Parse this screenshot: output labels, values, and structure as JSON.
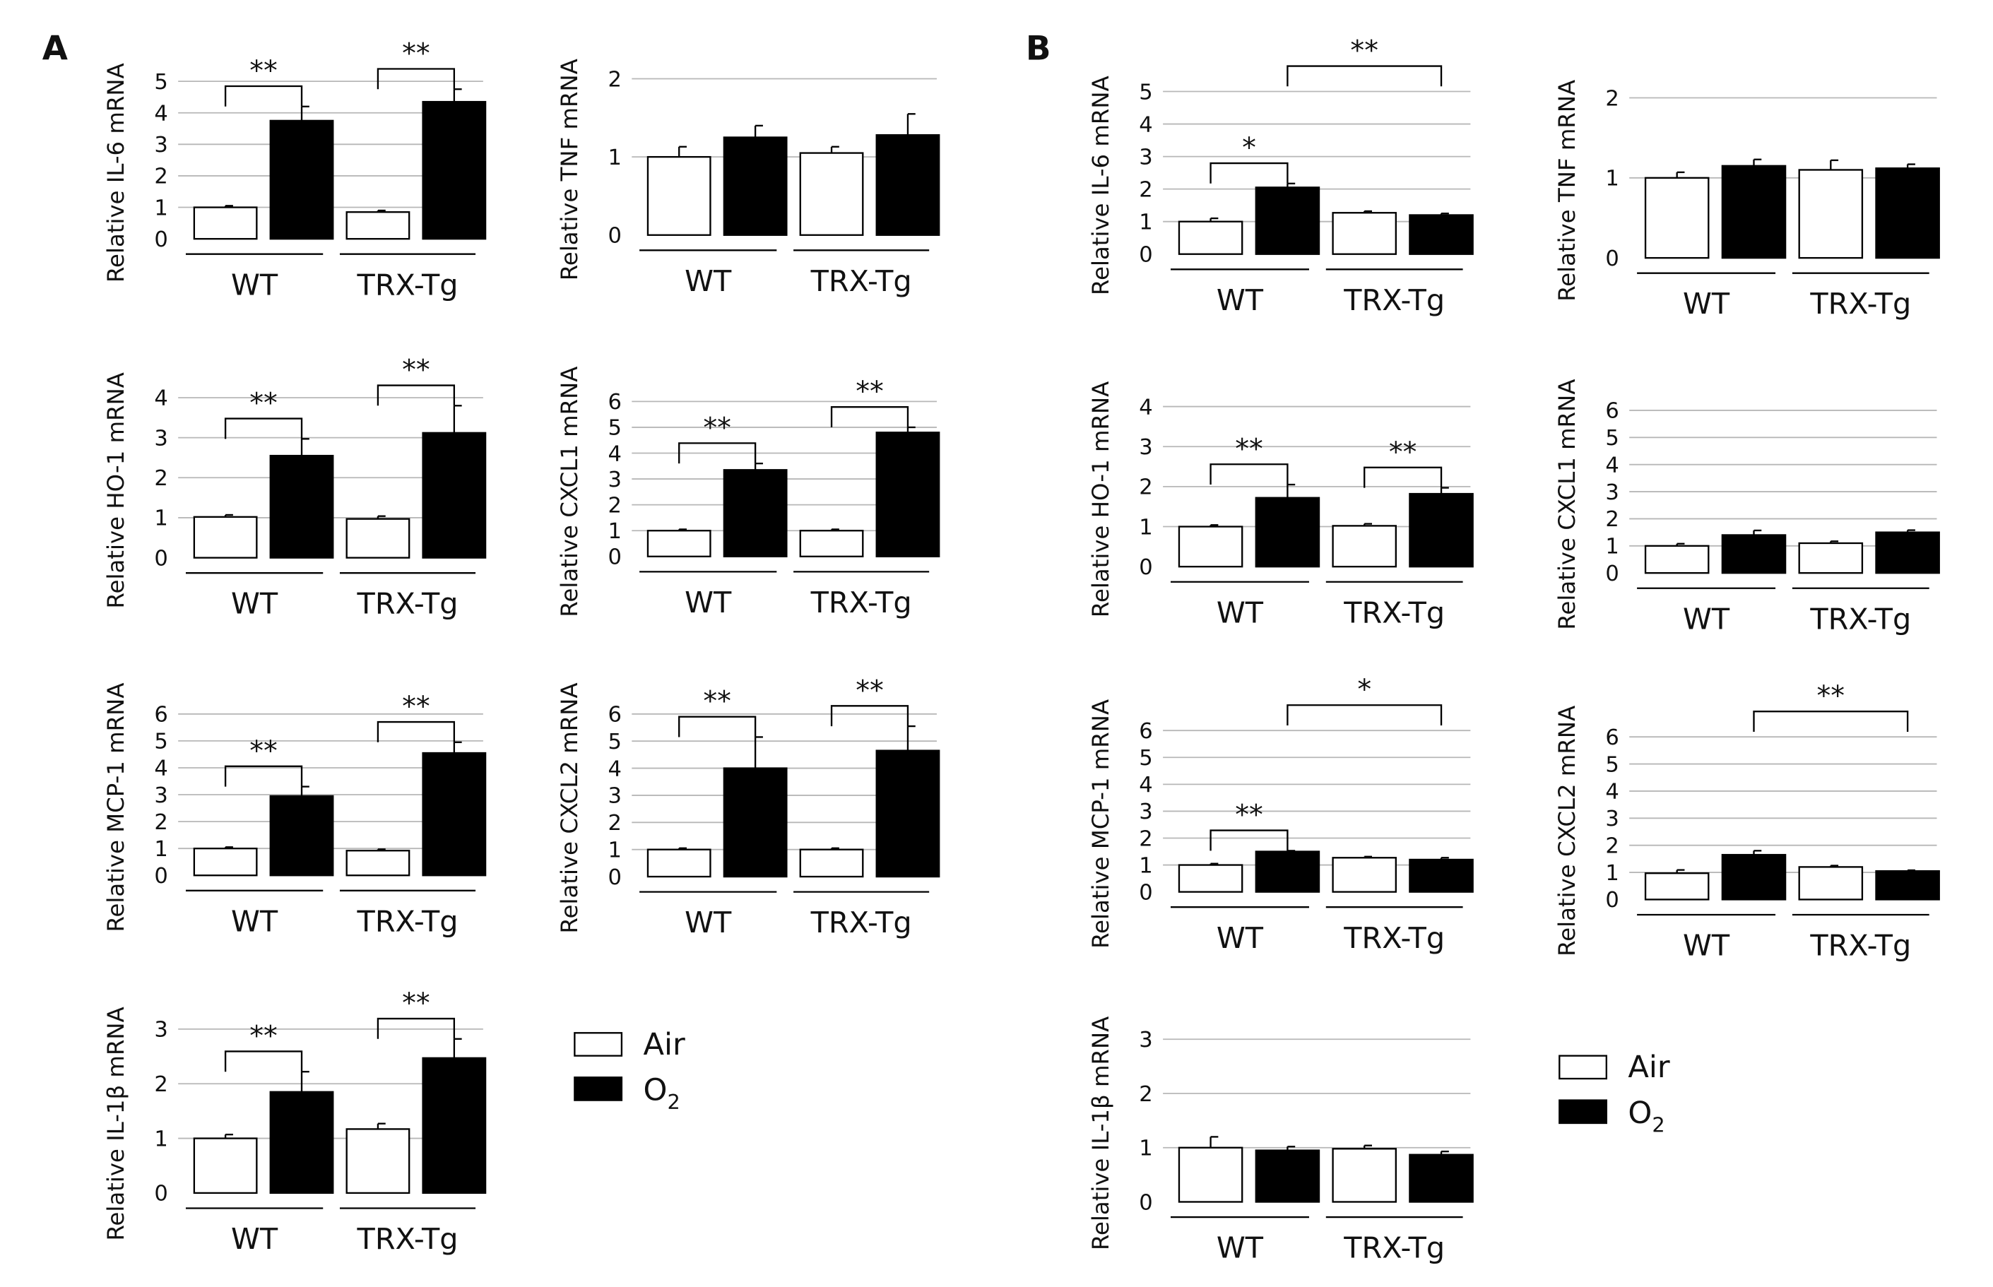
{
  "panel_labels": [
    "A",
    "B"
  ],
  "legend": {
    "air_label": "Air",
    "o2_label": "O",
    "o2_subscript": "2",
    "colors": {
      "air": "#ffffff",
      "o2": "#000000",
      "edge": "#000000"
    }
  },
  "chart_data": [
    {
      "id": "a-il6",
      "panel": "A",
      "type": "bar",
      "ylabel": "Relative IL-6 mRNA",
      "ylim": [
        0,
        5
      ],
      "yticks": [
        "0",
        "1",
        "2",
        "3",
        "4",
        "5"
      ],
      "groups": [
        "WT",
        "TRX-Tg"
      ],
      "series": [
        {
          "name": "Air",
          "values": [
            1.0,
            0.85
          ],
          "errors": [
            0.05,
            0.05
          ]
        },
        {
          "name": "O2",
          "values": [
            3.75,
            4.35
          ],
          "errors": [
            0.45,
            0.4
          ]
        }
      ],
      "significance": [
        {
          "label": "**",
          "from": "WT Air",
          "to": "WT O2"
        },
        {
          "label": "**",
          "from": "TRX-Tg Air",
          "to": "TRX-Tg O2"
        }
      ]
    },
    {
      "id": "a-tnf",
      "panel": "A",
      "type": "bar",
      "ylabel": "Relative TNF mRNA",
      "ylim": [
        0,
        2
      ],
      "yticks": [
        "0",
        "1",
        "2"
      ],
      "groups": [
        "WT",
        "TRX-Tg"
      ],
      "series": [
        {
          "name": "Air",
          "values": [
            1.0,
            1.05
          ],
          "errors": [
            0.13,
            0.08
          ]
        },
        {
          "name": "O2",
          "values": [
            1.25,
            1.28
          ],
          "errors": [
            0.15,
            0.27
          ]
        }
      ],
      "significance": []
    },
    {
      "id": "a-ho1",
      "panel": "A",
      "type": "bar",
      "ylabel": "Relative HO-1 mRNA",
      "ylim": [
        0,
        4
      ],
      "yticks": [
        "0",
        "1",
        "2",
        "3",
        "4"
      ],
      "groups": [
        "WT",
        "TRX-Tg"
      ],
      "series": [
        {
          "name": "Air",
          "values": [
            1.02,
            0.97
          ],
          "errors": [
            0.05,
            0.07
          ]
        },
        {
          "name": "O2",
          "values": [
            2.55,
            3.12
          ],
          "errors": [
            0.42,
            0.68
          ]
        }
      ],
      "significance": [
        {
          "label": "**",
          "from": "WT Air",
          "to": "WT O2"
        },
        {
          "label": "**",
          "from": "TRX-Tg Air",
          "to": "TRX-Tg O2"
        }
      ]
    },
    {
      "id": "a-cxcl1",
      "panel": "A",
      "type": "bar",
      "ylabel": "Relative CXCL1 mRNA",
      "ylim": [
        0,
        6
      ],
      "yticks": [
        "0",
        "1",
        "2",
        "3",
        "4",
        "5",
        "6"
      ],
      "groups": [
        "WT",
        "TRX-Tg"
      ],
      "series": [
        {
          "name": "Air",
          "values": [
            1.0,
            1.0
          ],
          "errors": [
            0.05,
            0.05
          ]
        },
        {
          "name": "O2",
          "values": [
            3.35,
            4.8
          ],
          "errors": [
            0.25,
            0.2
          ]
        }
      ],
      "significance": [
        {
          "label": "**",
          "from": "WT Air",
          "to": "WT O2"
        },
        {
          "label": "**",
          "from": "TRX-Tg Air",
          "to": "TRX-Tg O2"
        }
      ]
    },
    {
      "id": "a-mcp1",
      "panel": "A",
      "type": "bar",
      "ylabel": "Relative MCP-1 mRNA",
      "ylim": [
        0,
        6
      ],
      "yticks": [
        "0",
        "1",
        "2",
        "3",
        "4",
        "5",
        "6"
      ],
      "groups": [
        "WT",
        "TRX-Tg"
      ],
      "series": [
        {
          "name": "Air",
          "values": [
            1.0,
            0.92
          ],
          "errors": [
            0.05,
            0.05
          ]
        },
        {
          "name": "O2",
          "values": [
            2.95,
            4.55
          ],
          "errors": [
            0.35,
            0.4
          ]
        }
      ],
      "significance": [
        {
          "label": "**",
          "from": "WT Air",
          "to": "WT O2"
        },
        {
          "label": "**",
          "from": "TRX-Tg Air",
          "to": "TRX-Tg O2"
        }
      ]
    },
    {
      "id": "a-cxcl2",
      "panel": "A",
      "type": "bar",
      "ylabel": "Relative CXCL2 mRNA",
      "ylim": [
        0,
        6
      ],
      "yticks": [
        "0",
        "1",
        "2",
        "3",
        "4",
        "5",
        "6"
      ],
      "groups": [
        "WT",
        "TRX-Tg"
      ],
      "series": [
        {
          "name": "Air",
          "values": [
            1.0,
            1.0
          ],
          "errors": [
            0.05,
            0.05
          ]
        },
        {
          "name": "O2",
          "values": [
            4.0,
            4.65
          ],
          "errors": [
            1.15,
            0.9
          ]
        }
      ],
      "significance": [
        {
          "label": "**",
          "from": "WT Air",
          "to": "WT O2"
        },
        {
          "label": "**",
          "from": "TRX-Tg Air",
          "to": "TRX-Tg O2"
        }
      ]
    },
    {
      "id": "a-il1b",
      "panel": "A",
      "type": "bar",
      "ylabel": "Relative IL-1β mRNA",
      "ylim": [
        0,
        3
      ],
      "yticks": [
        "0",
        "1",
        "2",
        "3"
      ],
      "groups": [
        "WT",
        "TRX-Tg"
      ],
      "series": [
        {
          "name": "Air",
          "values": [
            1.0,
            1.17
          ],
          "errors": [
            0.07,
            0.1
          ]
        },
        {
          "name": "O2",
          "values": [
            1.85,
            2.47
          ],
          "errors": [
            0.37,
            0.35
          ]
        }
      ],
      "significance": [
        {
          "label": "**",
          "from": "WT Air",
          "to": "WT O2"
        },
        {
          "label": "**",
          "from": "TRX-Tg Air",
          "to": "TRX-Tg O2"
        }
      ]
    },
    {
      "id": "b-il6",
      "panel": "B",
      "type": "bar",
      "ylabel": "Relative IL-6 mRNA",
      "ylim": [
        0,
        5
      ],
      "yticks": [
        "0",
        "1",
        "2",
        "3",
        "4",
        "5"
      ],
      "groups": [
        "WT",
        "TRX-Tg"
      ],
      "series": [
        {
          "name": "Air",
          "values": [
            1.0,
            1.27
          ],
          "errors": [
            0.1,
            0.05
          ]
        },
        {
          "name": "O2",
          "values": [
            2.05,
            1.2
          ],
          "errors": [
            0.12,
            0.05
          ]
        }
      ],
      "significance": [
        {
          "label": "*",
          "from": "WT Air",
          "to": "WT O2"
        },
        {
          "label": "**",
          "from": "WT O2",
          "to": "TRX-Tg O2"
        }
      ]
    },
    {
      "id": "b-tnf",
      "panel": "B",
      "type": "bar",
      "ylabel": "Relative TNF mRNA",
      "ylim": [
        0,
        2
      ],
      "yticks": [
        "0",
        "1",
        "2"
      ],
      "groups": [
        "WT",
        "TRX-Tg"
      ],
      "series": [
        {
          "name": "Air",
          "values": [
            1.0,
            1.1
          ],
          "errors": [
            0.07,
            0.12
          ]
        },
        {
          "name": "O2",
          "values": [
            1.15,
            1.12
          ],
          "errors": [
            0.08,
            0.05
          ]
        }
      ],
      "significance": []
    },
    {
      "id": "b-ho1",
      "panel": "B",
      "type": "bar",
      "ylabel": "Relative HO-1 mRNA",
      "ylim": [
        0,
        4
      ],
      "yticks": [
        "0",
        "1",
        "2",
        "3",
        "4"
      ],
      "groups": [
        "WT",
        "TRX-Tg"
      ],
      "series": [
        {
          "name": "Air",
          "values": [
            1.0,
            1.02
          ],
          "errors": [
            0.04,
            0.05
          ]
        },
        {
          "name": "O2",
          "values": [
            1.72,
            1.82
          ],
          "errors": [
            0.33,
            0.15
          ]
        }
      ],
      "significance": [
        {
          "label": "**",
          "from": "WT Air",
          "to": "WT O2"
        },
        {
          "label": "**",
          "from": "TRX-Tg Air",
          "to": "TRX-Tg O2"
        }
      ]
    },
    {
      "id": "b-cxcl1",
      "panel": "B",
      "type": "bar",
      "ylabel": "Relative CXCL1 mRNA",
      "ylim": [
        0,
        6
      ],
      "yticks": [
        "0",
        "1",
        "2",
        "3",
        "4",
        "5",
        "6"
      ],
      "groups": [
        "WT",
        "TRX-Tg"
      ],
      "series": [
        {
          "name": "Air",
          "values": [
            1.0,
            1.1
          ],
          "errors": [
            0.08,
            0.07
          ]
        },
        {
          "name": "O2",
          "values": [
            1.4,
            1.5
          ],
          "errors": [
            0.17,
            0.08
          ]
        }
      ],
      "significance": []
    },
    {
      "id": "b-mcp1",
      "panel": "B",
      "type": "bar",
      "ylabel": "Relative MCP-1 mRNA",
      "ylim": [
        0,
        6
      ],
      "yticks": [
        "0",
        "1",
        "2",
        "3",
        "4",
        "5",
        "6"
      ],
      "groups": [
        "WT",
        "TRX-Tg"
      ],
      "series": [
        {
          "name": "Air",
          "values": [
            1.0,
            1.27
          ],
          "errors": [
            0.05,
            0.04
          ]
        },
        {
          "name": "O2",
          "values": [
            1.5,
            1.2
          ],
          "errors": [
            0.03,
            0.07
          ]
        }
      ],
      "significance": [
        {
          "label": "**",
          "from": "WT Air",
          "to": "WT O2"
        },
        {
          "label": "*",
          "from": "WT O2",
          "to": "TRX-Tg O2"
        }
      ]
    },
    {
      "id": "b-cxcl2",
      "panel": "B",
      "type": "bar",
      "ylabel": "Relative CXCL2 mRNA",
      "ylim": [
        0,
        6
      ],
      "yticks": [
        "0",
        "1",
        "2",
        "3",
        "4",
        "5",
        "6"
      ],
      "groups": [
        "WT",
        "TRX-Tg"
      ],
      "series": [
        {
          "name": "Air",
          "values": [
            0.97,
            1.2
          ],
          "errors": [
            0.12,
            0.05
          ]
        },
        {
          "name": "O2",
          "values": [
            1.65,
            1.05
          ],
          "errors": [
            0.15,
            0.03
          ]
        }
      ],
      "significance": [
        {
          "label": "**",
          "from": "WT O2",
          "to": "TRX-Tg O2"
        }
      ]
    },
    {
      "id": "b-il1b",
      "panel": "B",
      "type": "bar",
      "ylabel": "Relative IL-1β mRNA",
      "ylim": [
        0,
        3
      ],
      "yticks": [
        "0",
        "1",
        "2",
        "3"
      ],
      "groups": [
        "WT",
        "TRX-Tg"
      ],
      "series": [
        {
          "name": "Air",
          "values": [
            1.0,
            0.98
          ],
          "errors": [
            0.2,
            0.06
          ]
        },
        {
          "name": "O2",
          "values": [
            0.95,
            0.87
          ],
          "errors": [
            0.07,
            0.06
          ]
        }
      ],
      "significance": []
    }
  ]
}
